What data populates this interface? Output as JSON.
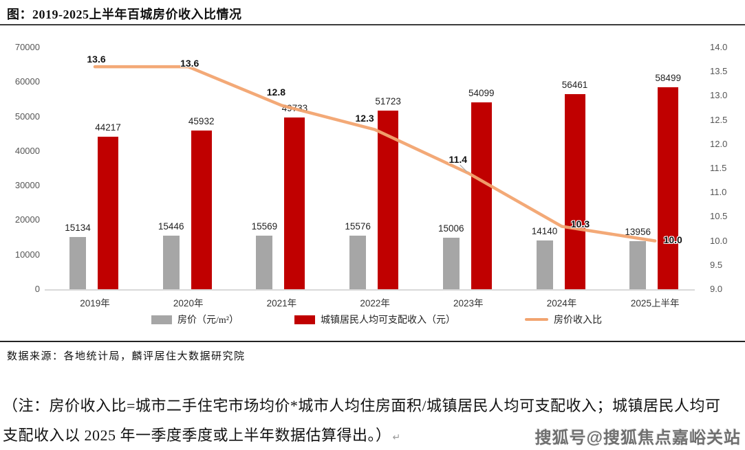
{
  "page": {
    "title": "图：2019-2025上半年百城房价收入比情况",
    "source_note": "数据来源：各地统计局，麟评居住大数据研究院",
    "footnote_line1": "（注：房价收入比=城市二手住宅市场均价*城市人均住房面积/城镇居民人均可支配收入；城镇居民人均可",
    "footnote_line2": "支配收入以 2025 年一季度季度或上半年数据估算得出。）",
    "footnote_return_mark": "↵",
    "watermark": "搜狐号@搜狐焦点嘉峪关站"
  },
  "chart_data": {
    "type": "bar",
    "subtype": "grouped-bars-with-line",
    "title": "图：2019-2025上半年百城房价收入比情况",
    "categories": [
      "2019年",
      "2020年",
      "2021年",
      "2022年",
      "2023年",
      "2024年",
      "2025上半年"
    ],
    "series": [
      {
        "name": "房价（元/m²）",
        "type": "bar",
        "axis": "left",
        "color": "#A6A6A6",
        "values": [
          15134,
          15446,
          15569,
          15576,
          15006,
          14140,
          13956
        ]
      },
      {
        "name": "城镇居民人均可支配收入（元）",
        "type": "bar",
        "axis": "left",
        "color": "#C00000",
        "values": [
          44217,
          45932,
          49733,
          51723,
          54099,
          56461,
          58499
        ]
      },
      {
        "name": "房价收入比",
        "type": "line",
        "axis": "right",
        "color": "#F2A470",
        "values": [
          13.6,
          13.6,
          12.8,
          12.3,
          11.4,
          10.3,
          10.0
        ],
        "labels": [
          "13.6",
          "13.6",
          "12.8",
          "12.3",
          "11.4",
          "10.3",
          "10.0"
        ]
      }
    ],
    "left_axis": {
      "range": [
        0,
        70000
      ],
      "ticks": [
        0,
        10000,
        20000,
        30000,
        40000,
        50000,
        60000,
        70000
      ]
    },
    "right_axis": {
      "range": [
        9.0,
        14.0
      ],
      "ticks": [
        "9.0",
        "9.5",
        "10.0",
        "10.5",
        "11.0",
        "11.5",
        "12.0",
        "12.5",
        "13.0",
        "13.5",
        "14.0"
      ]
    },
    "legend_position": "bottom",
    "grid": false
  }
}
